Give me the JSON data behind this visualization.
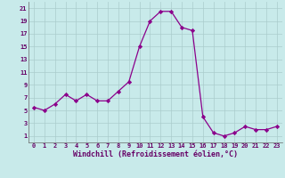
{
  "x": [
    0,
    1,
    2,
    3,
    4,
    5,
    6,
    7,
    8,
    9,
    10,
    11,
    12,
    13,
    14,
    15,
    16,
    17,
    18,
    19,
    20,
    21,
    22,
    23
  ],
  "y": [
    5.5,
    5.0,
    6.0,
    7.5,
    6.5,
    7.5,
    6.5,
    6.5,
    8.0,
    9.5,
    15.0,
    19.0,
    20.5,
    20.5,
    18.0,
    17.5,
    4.0,
    1.5,
    1.0,
    1.5,
    2.5,
    2.0,
    2.0,
    2.5
  ],
  "line_color": "#8b008b",
  "marker": "D",
  "markersize": 2.2,
  "linewidth": 0.9,
  "bg_color": "#c8eaea",
  "grid_color": "#aacccc",
  "xlabel": "Windchill (Refroidissement éolien,°C)",
  "yticks": [
    1,
    3,
    5,
    7,
    9,
    11,
    13,
    15,
    17,
    19,
    21
  ],
  "xticks": [
    0,
    1,
    2,
    3,
    4,
    5,
    6,
    7,
    8,
    9,
    10,
    11,
    12,
    13,
    14,
    15,
    16,
    17,
    18,
    19,
    20,
    21,
    22,
    23
  ],
  "ylim": [
    0,
    22
  ],
  "xlim": [
    -0.5,
    23.5
  ],
  "tick_fontsize": 5.0,
  "xlabel_fontsize": 6.0,
  "tick_color": "#660066"
}
